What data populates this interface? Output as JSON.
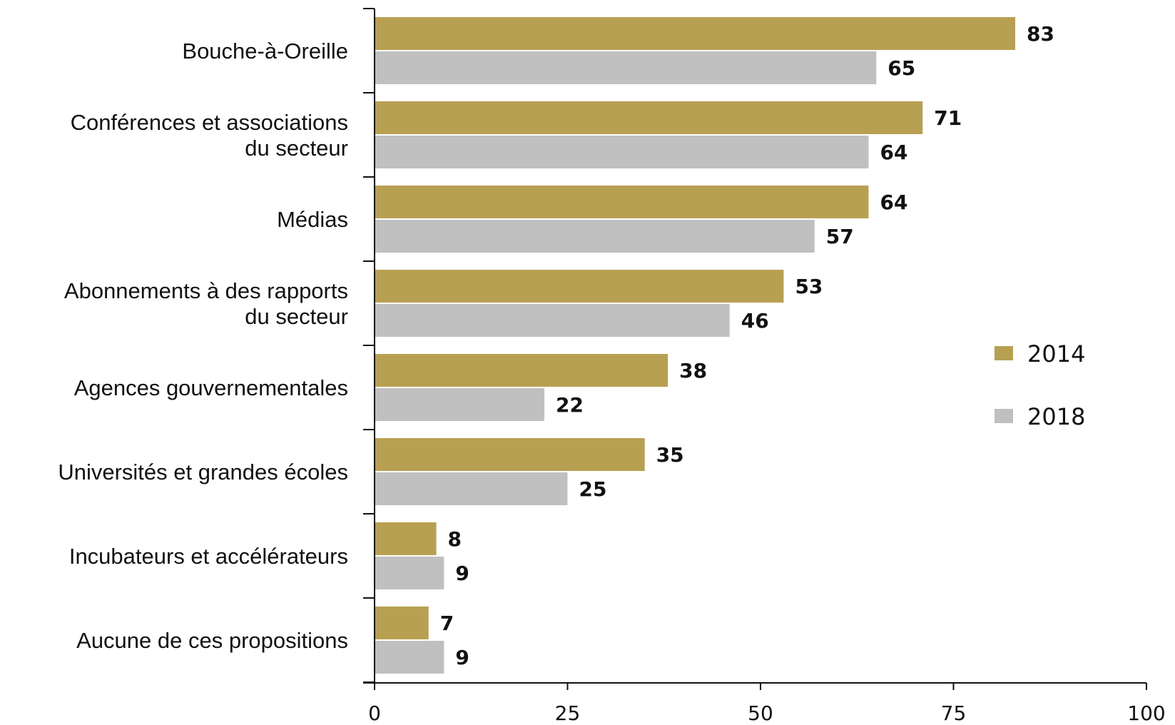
{
  "chart_data": {
    "type": "bar",
    "orientation": "horizontal",
    "categories": [
      [
        "Bouche-à-Oreille"
      ],
      [
        "Conférences et associations",
        "du secteur"
      ],
      [
        "Médias"
      ],
      [
        "Abonnements à des rapports",
        "du secteur"
      ],
      [
        "Agences gouvernementales"
      ],
      [
        "Universités et grandes écoles"
      ],
      [
        "Incubateurs et accélérateurs"
      ],
      [
        "Aucune de ces propositions"
      ]
    ],
    "series": [
      {
        "name": "2014",
        "color": "#b8a052",
        "values": [
          83,
          71,
          64,
          53,
          38,
          35,
          8,
          7
        ]
      },
      {
        "name": "2018",
        "color": "#c0c0c0",
        "values": [
          65,
          64,
          57,
          46,
          22,
          25,
          9,
          9
        ]
      }
    ],
    "xlim": [
      0,
      100
    ],
    "xticks": [
      0,
      25,
      50,
      75,
      100
    ],
    "grid": false,
    "legend_position": "right"
  }
}
